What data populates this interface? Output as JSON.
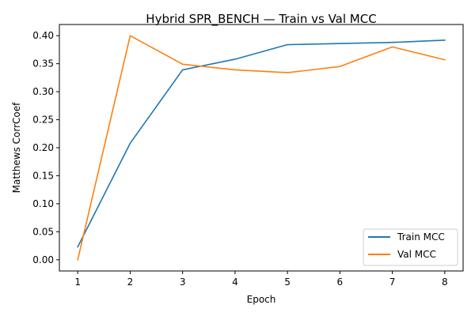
{
  "chart_data": {
    "type": "line",
    "title": "Hybrid SPR_BENCH — Train vs Val MCC",
    "xlabel": "Epoch",
    "ylabel": "Matthews CorrCoef",
    "x": [
      1,
      2,
      3,
      4,
      5,
      6,
      7,
      8
    ],
    "xlim": [
      0.65,
      8.35
    ],
    "ylim": [
      -0.02,
      0.42
    ],
    "xticks": [
      "1",
      "2",
      "3",
      "4",
      "5",
      "6",
      "7",
      "8"
    ],
    "yticks": [
      "0.00",
      "0.05",
      "0.10",
      "0.15",
      "0.20",
      "0.25",
      "0.30",
      "0.35",
      "0.40"
    ],
    "grid": false,
    "legend_position": "lower-right",
    "series": [
      {
        "name": "Train MCC",
        "color": "#1f77b4",
        "values": [
          0.023,
          0.208,
          0.339,
          0.358,
          0.384,
          0.386,
          0.388,
          0.392
        ]
      },
      {
        "name": "Val MCC",
        "color": "#ff7f0e",
        "values": [
          0.0,
          0.4,
          0.349,
          0.339,
          0.334,
          0.345,
          0.38,
          0.357
        ]
      }
    ]
  }
}
